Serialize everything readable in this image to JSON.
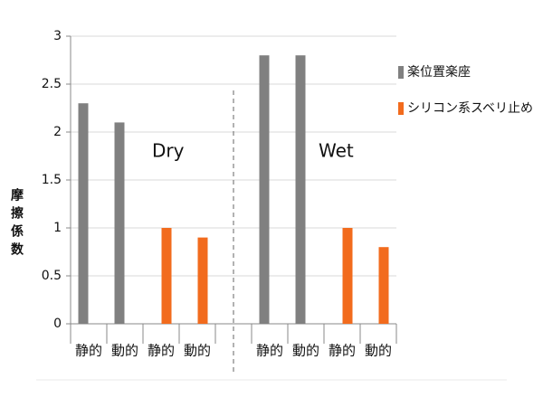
{
  "chart_data": {
    "type": "bar",
    "y_label": "摩擦係数",
    "categories": [
      "静的",
      "動的",
      "静的",
      "動的",
      null,
      "静的",
      "動的",
      "静的",
      "動的"
    ],
    "series": [
      {
        "name": "楽位置楽座",
        "color": "#808080",
        "values": [
          2.3,
          2.1,
          null,
          null,
          null,
          2.8,
          2.8,
          null,
          null
        ]
      },
      {
        "name": "シリコン系スベリ止め",
        "color": "#f26b1d",
        "values": [
          null,
          null,
          1,
          0.9,
          null,
          null,
          null,
          1,
          0.8
        ]
      }
    ],
    "annotations": [
      "Dry",
      "Wet"
    ],
    "ylim": [
      0,
      3
    ],
    "yticks": [
      0,
      0.5,
      1,
      1.5,
      2,
      2.5,
      3
    ],
    "grid": true,
    "legend": "right"
  }
}
